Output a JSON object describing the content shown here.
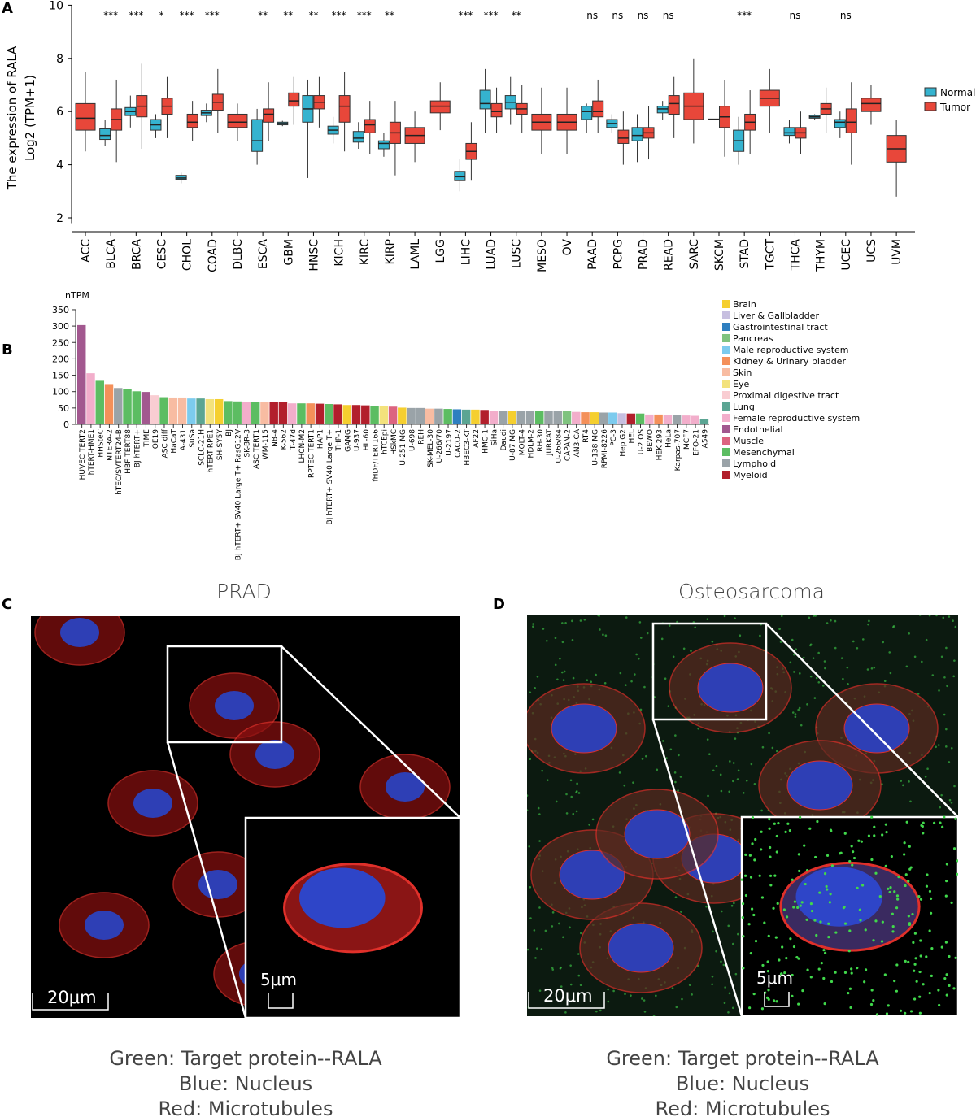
{
  "panels": {
    "a": "A",
    "b": "B",
    "c": "C",
    "d": "D"
  },
  "chart_data": [
    {
      "type": "box",
      "panel": "A",
      "ylabel_line1": "The expression of RALA",
      "ylabel_line2": "Log2 (TPM+1)",
      "ylim": [
        1.8,
        10
      ],
      "yticks": [
        2,
        4,
        6,
        8,
        10
      ],
      "legend": [
        {
          "name": "Normal",
          "color": "#35b3cf"
        },
        {
          "name": "Tumor",
          "color": "#e8473a"
        }
      ],
      "legend_position": "right",
      "categories": [
        "ACC",
        "BLCA",
        "BRCA",
        "CESC",
        "CHOL",
        "COAD",
        "DLBC",
        "ESCA",
        "GBM",
        "HNSC",
        "KICH",
        "KIRC",
        "KIRP",
        "LAML",
        "LGG",
        "LIHC",
        "LUAD",
        "LUSC",
        "MESO",
        "OV",
        "PAAD",
        "PCPG",
        "PRAD",
        "READ",
        "SARC",
        "SKCM",
        "STAD",
        "TGCT",
        "THCA",
        "THYM",
        "UCEC",
        "UCS",
        "UVM"
      ],
      "significance": [
        "",
        "***",
        "***",
        "*",
        "***",
        "***",
        "",
        "**",
        "**",
        "**",
        "***",
        "***",
        "**",
        "",
        "",
        "***",
        "***",
        "**",
        "",
        "",
        "ns",
        "ns",
        "ns",
        "ns",
        "",
        "",
        "***",
        "",
        "ns",
        "",
        "ns",
        "",
        ""
      ],
      "normal": [
        null,
        [
          4.7,
          4.95,
          5.1,
          5.35,
          5.7
        ],
        [
          5.4,
          5.85,
          6.0,
          6.15,
          6.6
        ],
        [
          5.0,
          5.3,
          5.5,
          5.7,
          5.9
        ],
        [
          3.3,
          3.45,
          3.5,
          3.6,
          3.7
        ],
        [
          5.6,
          5.85,
          5.95,
          6.05,
          6.3
        ],
        null,
        [
          4.0,
          4.5,
          4.9,
          5.7,
          6.1
        ],
        [
          5.45,
          5.5,
          5.55,
          5.6,
          5.65
        ],
        [
          3.5,
          5.6,
          6.1,
          6.6,
          7.2
        ],
        [
          4.8,
          5.15,
          5.3,
          5.45,
          5.8
        ],
        [
          4.6,
          4.85,
          5.0,
          5.25,
          5.6
        ],
        [
          4.3,
          4.6,
          4.8,
          4.9,
          5.2
        ],
        null,
        null,
        [
          3.0,
          3.4,
          3.55,
          3.75,
          4.2
        ],
        [
          5.2,
          6.1,
          6.3,
          6.8,
          7.6
        ],
        [
          5.5,
          6.1,
          6.35,
          6.6,
          7.3
        ],
        null,
        null,
        [
          5.2,
          5.7,
          6.0,
          6.2,
          6.3
        ],
        [
          5.2,
          5.4,
          5.55,
          5.7,
          5.9
        ],
        [
          4.1,
          4.9,
          5.1,
          5.4,
          5.9
        ],
        [
          5.7,
          5.95,
          6.1,
          6.2,
          6.4
        ],
        null,
        [
          5.7,
          5.7,
          5.7,
          5.72,
          5.72
        ],
        [
          4.0,
          4.5,
          4.9,
          5.3,
          5.8
        ],
        null,
        [
          4.8,
          5.1,
          5.2,
          5.4,
          5.7
        ],
        [
          5.7,
          5.75,
          5.8,
          5.85,
          5.9
        ],
        [
          5.0,
          5.4,
          5.6,
          5.7,
          6.0
        ],
        null,
        null
      ],
      "tumor": [
        [
          4.5,
          5.3,
          5.75,
          6.3,
          7.5
        ],
        [
          4.1,
          5.3,
          5.7,
          6.1,
          7.2
        ],
        [
          4.6,
          5.8,
          6.2,
          6.6,
          7.8
        ],
        [
          5.0,
          5.9,
          6.2,
          6.5,
          7.3
        ],
        [
          4.9,
          5.4,
          5.6,
          5.9,
          6.4
        ],
        [
          5.2,
          6.05,
          6.35,
          6.65,
          7.6
        ],
        [
          4.9,
          5.4,
          5.6,
          5.9,
          6.3
        ],
        [
          4.9,
          5.6,
          5.9,
          6.1,
          7.1
        ],
        [
          5.5,
          6.2,
          6.4,
          6.7,
          7.3
        ],
        [
          5.4,
          6.1,
          6.35,
          6.6,
          7.3
        ],
        [
          4.5,
          5.6,
          6.2,
          6.6,
          7.5
        ],
        [
          4.4,
          5.2,
          5.5,
          5.7,
          6.4
        ],
        [
          3.6,
          4.8,
          5.2,
          5.6,
          6.4
        ],
        [
          4.1,
          4.8,
          5.1,
          5.4,
          6.0
        ],
        [
          5.3,
          5.95,
          6.2,
          6.4,
          7.1
        ],
        [
          3.4,
          4.2,
          4.5,
          4.8,
          5.6
        ],
        [
          5.2,
          5.8,
          6.0,
          6.3,
          6.9
        ],
        [
          5.2,
          5.9,
          6.1,
          6.3,
          7.0
        ],
        [
          4.4,
          5.3,
          5.6,
          5.9,
          6.9
        ],
        [
          4.4,
          5.3,
          5.6,
          5.9,
          6.9
        ],
        [
          5.2,
          5.8,
          6.0,
          6.4,
          7.2
        ],
        [
          4.0,
          4.8,
          5.0,
          5.3,
          6.0
        ],
        [
          4.2,
          5.0,
          5.2,
          5.4,
          6.2
        ],
        [
          5.0,
          5.9,
          6.3,
          6.6,
          7.3
        ],
        [
          4.8,
          5.7,
          6.2,
          6.7,
          8.0
        ],
        [
          4.3,
          5.4,
          5.8,
          6.2,
          7.2
        ],
        [
          4.4,
          5.3,
          5.6,
          5.9,
          6.8
        ],
        [
          5.2,
          6.2,
          6.5,
          6.8,
          7.6
        ],
        [
          4.4,
          5.0,
          5.2,
          5.4,
          6.0
        ],
        [
          5.2,
          5.9,
          6.1,
          6.3,
          6.9
        ],
        [
          4.0,
          5.2,
          5.6,
          6.1,
          7.1
        ],
        [
          5.5,
          6.0,
          6.3,
          6.5,
          7.0
        ],
        [
          2.8,
          4.1,
          4.6,
          5.1,
          5.7
        ]
      ]
    },
    {
      "type": "bar",
      "panel": "B",
      "ylabel": "nTPM",
      "ylim": [
        0,
        350
      ],
      "yticks": [
        0,
        50,
        100,
        150,
        200,
        250,
        300,
        350
      ],
      "legend_position": "right",
      "legend": [
        {
          "name": "Brain",
          "color": "#f5cf2f"
        },
        {
          "name": "Liver & Gallbladder",
          "color": "#c7bfe0"
        },
        {
          "name": "Gastrointestinal tract",
          "color": "#2e7fc0"
        },
        {
          "name": "Pancreas",
          "color": "#7fc37f"
        },
        {
          "name": "Male reproductive system",
          "color": "#7ccbee"
        },
        {
          "name": "Kidney & Urinary bladder",
          "color": "#f4905a"
        },
        {
          "name": "Skin",
          "color": "#f8bca2"
        },
        {
          "name": "Eye",
          "color": "#f3e27c"
        },
        {
          "name": "Proximal digestive tract",
          "color": "#f9cdd2"
        },
        {
          "name": "Lung",
          "color": "#5ba593"
        },
        {
          "name": "Female reproductive system",
          "color": "#f2aecb"
        },
        {
          "name": "Endothelial",
          "color": "#a2588f"
        },
        {
          "name": "Muscle",
          "color": "#dc6480"
        },
        {
          "name": "Mesenchymal",
          "color": "#5cbd62"
        },
        {
          "name": "Lymphoid",
          "color": "#9aa3a8"
        },
        {
          "name": "Myeloid",
          "color": "#b21f2c"
        }
      ],
      "bars": [
        [
          "HUVEC TERT2",
          303,
          "Endothelial"
        ],
        [
          "hTERT-HME1",
          156,
          "Female reproductive system"
        ],
        [
          "HHSteC",
          133,
          "Mesenchymal"
        ],
        [
          "NTERA-2",
          123,
          "Kidney & Urinary bladder"
        ],
        [
          "hTEC/SVTERT24-B",
          111,
          "Lymphoid"
        ],
        [
          "HBF TERT88",
          107,
          "Mesenchymal"
        ],
        [
          "BJ hTERT+",
          101,
          "Mesenchymal"
        ],
        [
          "TIME",
          99,
          "Endothelial"
        ],
        [
          "OE19",
          89,
          "Proximal digestive tract"
        ],
        [
          "ASC diff",
          83,
          "Mesenchymal"
        ],
        [
          "HaCaT",
          82,
          "Skin"
        ],
        [
          "A-431",
          82,
          "Skin"
        ],
        [
          "SuSa",
          79,
          "Male reproductive system"
        ],
        [
          "SCLC-21H",
          79,
          "Lung"
        ],
        [
          "hTERT-RPE1",
          77,
          "Eye"
        ],
        [
          "SH-SY5Y",
          77,
          "Brain"
        ],
        [
          "BJ",
          71,
          "Mesenchymal"
        ],
        [
          "BJ hTERT+ SV40 Large T+ RasG12V",
          70,
          "Mesenchymal"
        ],
        [
          "SK-BR-3",
          68,
          "Female reproductive system"
        ],
        [
          "ASC TERT1",
          68,
          "Mesenchymal"
        ],
        [
          "WM-115",
          67,
          "Skin"
        ],
        [
          "NB-4",
          67,
          "Myeloid"
        ],
        [
          "K-562",
          67,
          "Myeloid"
        ],
        [
          "T-47d",
          64,
          "Female reproductive system"
        ],
        [
          "LHCN-M2",
          64,
          "Mesenchymal"
        ],
        [
          "RPTEC TERT1",
          64,
          "Kidney & Urinary bladder"
        ],
        [
          "HAP1",
          63,
          "Myeloid"
        ],
        [
          "BJ hTERT+ SV40 Large T+",
          62,
          "Mesenchymal"
        ],
        [
          "THP-1",
          61,
          "Myeloid"
        ],
        [
          "GAMG",
          59,
          "Brain"
        ],
        [
          "U-937",
          59,
          "Myeloid"
        ],
        [
          "HL-60",
          58,
          "Myeloid"
        ],
        [
          "fHDF/TERT166",
          55,
          "Mesenchymal"
        ],
        [
          "hTCEpi",
          55,
          "Eye"
        ],
        [
          "HSkMC",
          54,
          "Muscle"
        ],
        [
          "U-251 MG",
          51,
          "Brain"
        ],
        [
          "U-698",
          50,
          "Lymphoid"
        ],
        [
          "REH",
          50,
          "Lymphoid"
        ],
        [
          "SK-MEL-30",
          48,
          "Skin"
        ],
        [
          "U-266/70",
          48,
          "Lymphoid"
        ],
        [
          "U-2197",
          47,
          "Mesenchymal"
        ],
        [
          "CACO-2",
          46,
          "Gastrointestinal tract"
        ],
        [
          "HBEC3-KT",
          45,
          "Lung"
        ],
        [
          "AF22",
          45,
          "Brain"
        ],
        [
          "HMC-1",
          44,
          "Myeloid"
        ],
        [
          "SiHa",
          42,
          "Female reproductive system"
        ],
        [
          "Daudi",
          42,
          "Lymphoid"
        ],
        [
          "U-87 MG",
          41,
          "Brain"
        ],
        [
          "MOLT-4",
          41,
          "Lymphoid"
        ],
        [
          "HDLM-2",
          41,
          "Lymphoid"
        ],
        [
          "RH-30",
          41,
          "Mesenchymal"
        ],
        [
          "JURKAT",
          40,
          "Lymphoid"
        ],
        [
          "U-266/84",
          40,
          "Lymphoid"
        ],
        [
          "CAPAN-2",
          40,
          "Pancreas"
        ],
        [
          "AN3-CA",
          38,
          "Female reproductive system"
        ],
        [
          "RT4",
          37,
          "Kidney & Urinary bladder"
        ],
        [
          "U-138 MG",
          37,
          "Brain"
        ],
        [
          "RPMI-8226",
          36,
          "Lymphoid"
        ],
        [
          "PC-3",
          36,
          "Male reproductive system"
        ],
        [
          "Hep G2",
          34,
          "Liver & Gallbladder"
        ],
        [
          "HEL",
          33,
          "Myeloid"
        ],
        [
          "U-2 OS",
          33,
          "Mesenchymal"
        ],
        [
          "BEWO",
          30,
          "Female reproductive system"
        ],
        [
          "HEK 293",
          30,
          "Kidney & Urinary bladder"
        ],
        [
          "HeLa",
          29,
          "Female reproductive system"
        ],
        [
          "Karpas-707",
          28,
          "Lymphoid"
        ],
        [
          "MCF7",
          27,
          "Female reproductive system"
        ],
        [
          "EFO-21",
          26,
          "Female reproductive system"
        ],
        [
          "A549",
          17,
          "Lung"
        ]
      ]
    }
  ],
  "images": {
    "c": {
      "title": "PRAD",
      "scale_main": "20μm",
      "scale_inset": "5μm",
      "caption": [
        "Green: Target protein--RALA",
        "Blue: Nucleus",
        "Red: Microtubules"
      ]
    },
    "d": {
      "title": "Osteosarcoma",
      "scale_main": "20μm",
      "scale_inset": "5μm",
      "caption": [
        "Green: Target protein--RALA",
        "Blue: Nucleus",
        "Red: Microtubules"
      ]
    }
  }
}
